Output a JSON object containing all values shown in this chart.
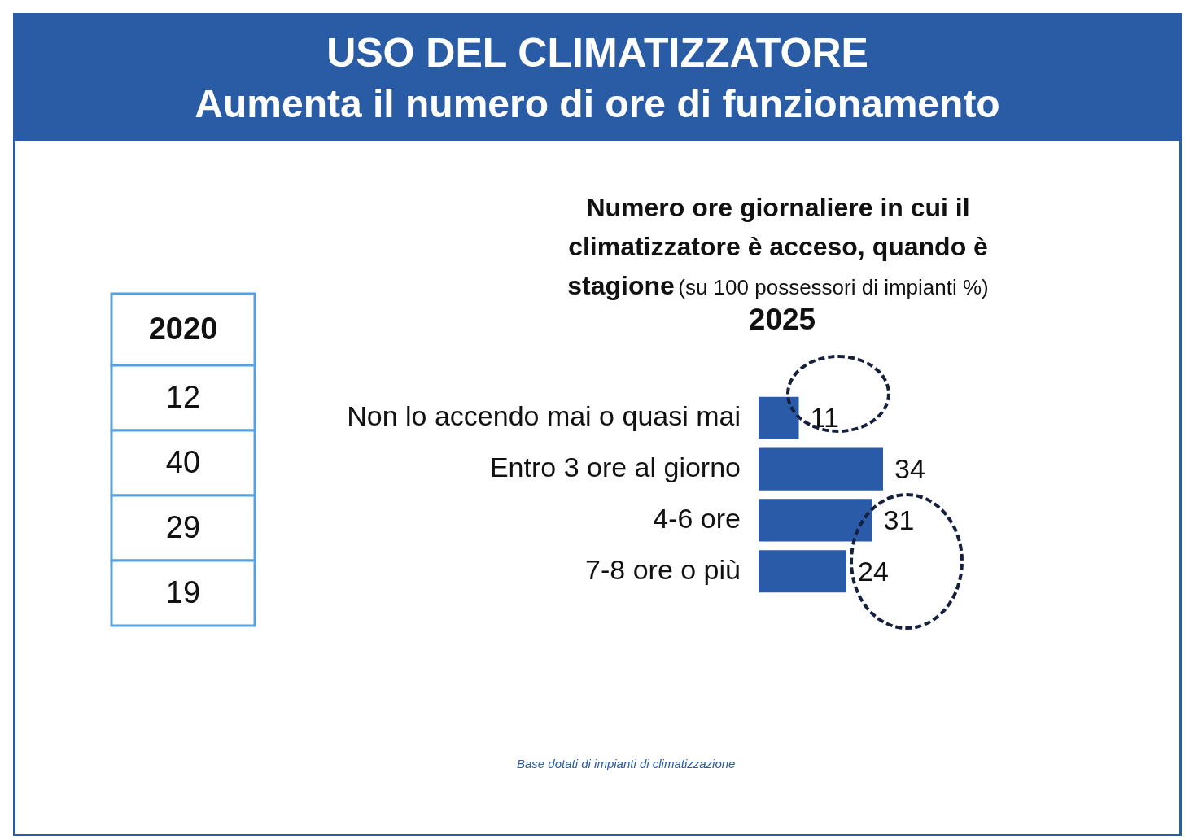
{
  "chart_data": [
    {
      "type": "other",
      "title": "USO DEL CLIMATIZZATORE",
      "subtitle": "Aumenta il numero di ore di funzionamento"
    },
    {
      "type": "heatmap",
      "categories": [
        "2020"
      ],
      "y_categories": [
        null,
        null,
        null,
        null
      ],
      "cells": [
        [
          12
        ],
        [
          40
        ],
        [
          29
        ],
        [
          19
        ]
      ],
      "data_labels": true
    },
    {
      "type": "bar",
      "orientation": "horizontal",
      "title": "Numero ore giornaliere in cui il climatizzatore è acceso, quando è stagione",
      "subtitle": "(su 100 possessori di impianti %)",
      "categories": [
        "Non lo accendo mai o quasi mai",
        "Entro 3 ore al giorno",
        "4-6 ore",
        "7-8 ore o più"
      ],
      "series": [
        {
          "name": "2025",
          "color": "#2a5ba8",
          "values": [
            11,
            34,
            31,
            24
          ]
        }
      ],
      "data_labels": true,
      "legend": false,
      "tick_labels": "y",
      "annotations": [
        "Base dotati di impianti di climatizzazione"
      ]
    }
  ]
}
